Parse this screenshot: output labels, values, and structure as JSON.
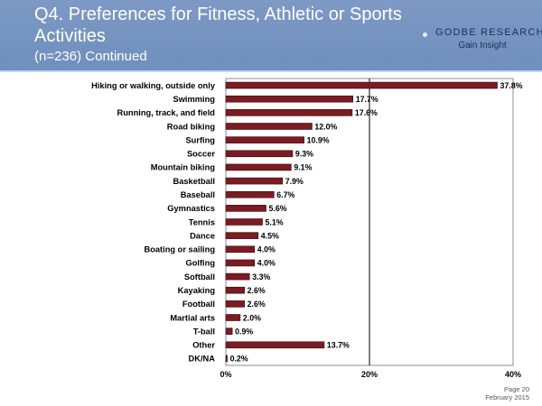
{
  "header": {
    "title": "Q4. Preferences for Fitness, Athletic or Sports Activities",
    "subtitle": "(n=236) Continued",
    "brand_name": "GODBE RESEARCH",
    "brand_sub": "Gain Insight"
  },
  "footer": {
    "page": "Page 20",
    "date": "February 2015"
  },
  "colors": {
    "header_bg": "#7d99c4",
    "bar": "#7b1b22",
    "bar_border": "#3a0a0e"
  },
  "chart_data": {
    "type": "bar",
    "orientation": "horizontal",
    "categories": [
      "Hiking or walking, outside only",
      "Swimming",
      "Running, track, and field",
      "Road biking",
      "Surfing",
      "Soccer",
      "Mountain biking",
      "Basketball",
      "Baseball",
      "Gymnastics",
      "Tennis",
      "Dance",
      "Boating or sailing",
      "Golfing",
      "Softball",
      "Kayaking",
      "Football",
      "Martial arts",
      "T-ball",
      "Other",
      "DK/NA"
    ],
    "values": [
      37.8,
      17.7,
      17.6,
      12.0,
      10.9,
      9.3,
      9.1,
      7.9,
      6.7,
      5.6,
      5.1,
      4.5,
      4.0,
      4.0,
      3.3,
      2.6,
      2.6,
      2.0,
      0.9,
      13.7,
      0.2
    ],
    "value_labels": [
      "37.8%",
      "17.7%",
      "17.6%",
      "12.0%",
      "10.9%",
      "9.3%",
      "9.1%",
      "7.9%",
      "6.7%",
      "5.6%",
      "5.1%",
      "4.5%",
      "4.0%",
      "4.0%",
      "3.3%",
      "2.6%",
      "2.6%",
      "2.0%",
      "0.9%",
      "13.7%",
      "0.2%"
    ],
    "xlim": [
      0,
      40
    ],
    "xticks": [
      0,
      20,
      40
    ],
    "xtick_labels": [
      "0%",
      "20%",
      "40%"
    ],
    "grid": true,
    "legend": "none"
  }
}
